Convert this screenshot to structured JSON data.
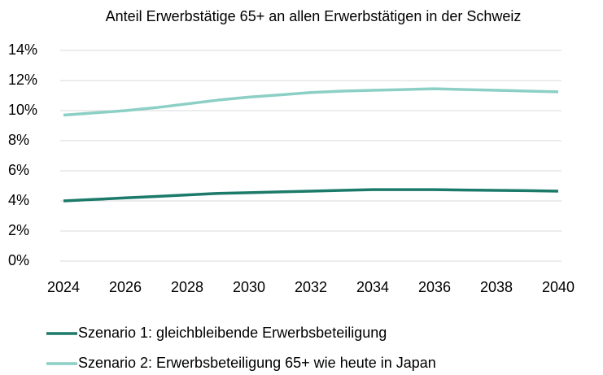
{
  "chart_data": {
    "type": "line",
    "title": "Anteil Erwerbstätige 65+ an allen Erwerbstätigen in der Schweiz",
    "x": [
      2024,
      2025,
      2026,
      2027,
      2028,
      2029,
      2030,
      2031,
      2032,
      2033,
      2034,
      2035,
      2036,
      2037,
      2038,
      2039,
      2040
    ],
    "series": [
      {
        "name": "Szenario 1: gleichbleibende Erwerbsbeteiligung",
        "color": "#1b7a69",
        "values": [
          4.0,
          4.1,
          4.2,
          4.3,
          4.4,
          4.5,
          4.55,
          4.6,
          4.65,
          4.7,
          4.75,
          4.75,
          4.75,
          4.72,
          4.7,
          4.68,
          4.65
        ]
      },
      {
        "name": "Szenario 2: Erwerbsbeteiligung 65+ wie heute in Japan",
        "color": "#8ccfc5",
        "values": [
          9.7,
          9.85,
          10.0,
          10.2,
          10.45,
          10.7,
          10.9,
          11.05,
          11.2,
          11.3,
          11.35,
          11.4,
          11.45,
          11.4,
          11.35,
          11.3,
          11.25
        ]
      }
    ],
    "xlim": [
      2024,
      2040
    ],
    "xticks": [
      2024,
      2026,
      2028,
      2030,
      2032,
      2034,
      2036,
      2038,
      2040
    ],
    "ylim": [
      0,
      14
    ],
    "yticks": [
      {
        "value": 0,
        "label": "0%"
      },
      {
        "value": 2,
        "label": "2%"
      },
      {
        "value": 4,
        "label": "4%"
      },
      {
        "value": 6,
        "label": "6%"
      },
      {
        "value": 8,
        "label": "8%"
      },
      {
        "value": 10,
        "label": "10%"
      },
      {
        "value": 12,
        "label": "12%"
      },
      {
        "value": 14,
        "label": "14%"
      }
    ],
    "grid": true,
    "legend": "bottom"
  }
}
